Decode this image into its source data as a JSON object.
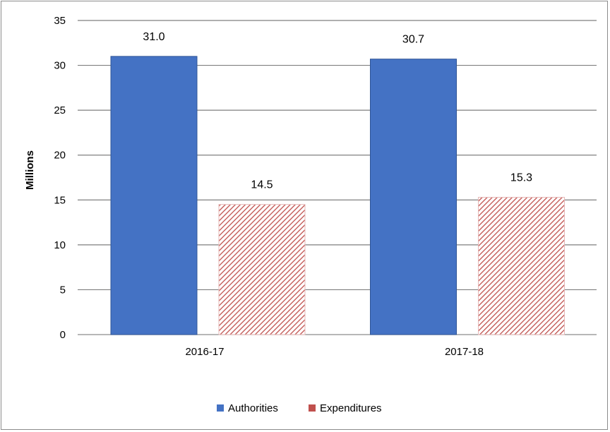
{
  "chart_data": {
    "type": "bar",
    "title": "",
    "xlabel": "",
    "ylabel": "Millions",
    "ylim": [
      0,
      35
    ],
    "yticks": [
      0,
      5,
      10,
      15,
      20,
      25,
      30,
      35
    ],
    "categories": [
      "2016-17",
      "2017-18"
    ],
    "series": [
      {
        "name": "Authorities",
        "values": [
          31.0,
          30.7
        ],
        "labels": [
          "31.0",
          "30.7"
        ],
        "color": "#4472c4",
        "pattern": "solid"
      },
      {
        "name": "Expenditures",
        "values": [
          14.5,
          15.3
        ],
        "labels": [
          "14.5",
          "15.3"
        ],
        "color": "#c0504d",
        "pattern": "diagonal-hatch"
      }
    ],
    "grid": true,
    "legend_position": "bottom"
  }
}
